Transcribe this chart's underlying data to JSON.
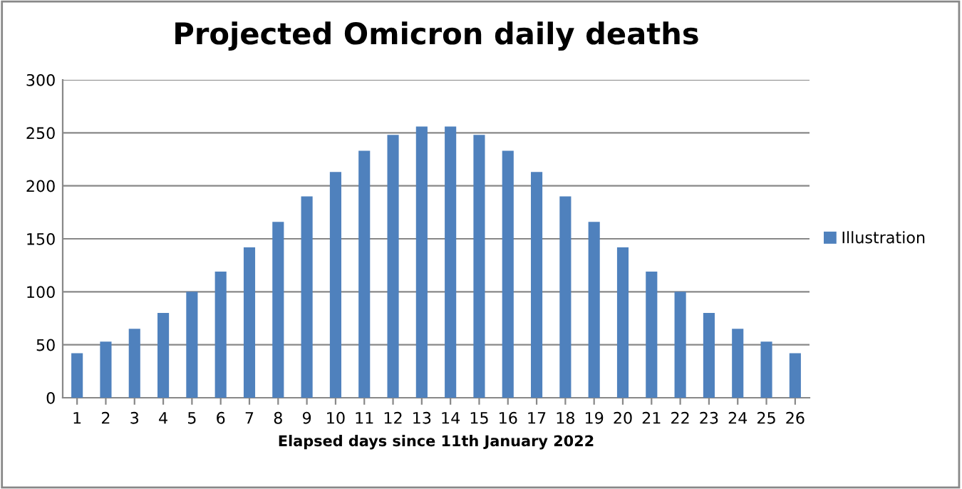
{
  "chart_data": {
    "type": "bar",
    "title": "Projected Omicron daily deaths",
    "xlabel": "Elapsed days since 11th January 2022",
    "categories": [
      "1",
      "2",
      "3",
      "4",
      "5",
      "6",
      "7",
      "8",
      "9",
      "10",
      "11",
      "12",
      "13",
      "14",
      "15",
      "16",
      "17",
      "18",
      "19",
      "20",
      "21",
      "22",
      "23",
      "24",
      "25",
      "26"
    ],
    "series": [
      {
        "name": "Illustration",
        "color": "#4f81bd",
        "values": [
          42,
          53,
          65,
          80,
          100,
          119,
          142,
          166,
          190,
          213,
          233,
          248,
          256,
          256,
          248,
          233,
          213,
          190,
          166,
          142,
          119,
          100,
          80,
          65,
          53,
          42
        ]
      }
    ],
    "ylim": [
      0,
      300
    ],
    "yticks": [
      0,
      50,
      100,
      150,
      200,
      250,
      300
    ],
    "grid": "y",
    "legend": "right"
  }
}
